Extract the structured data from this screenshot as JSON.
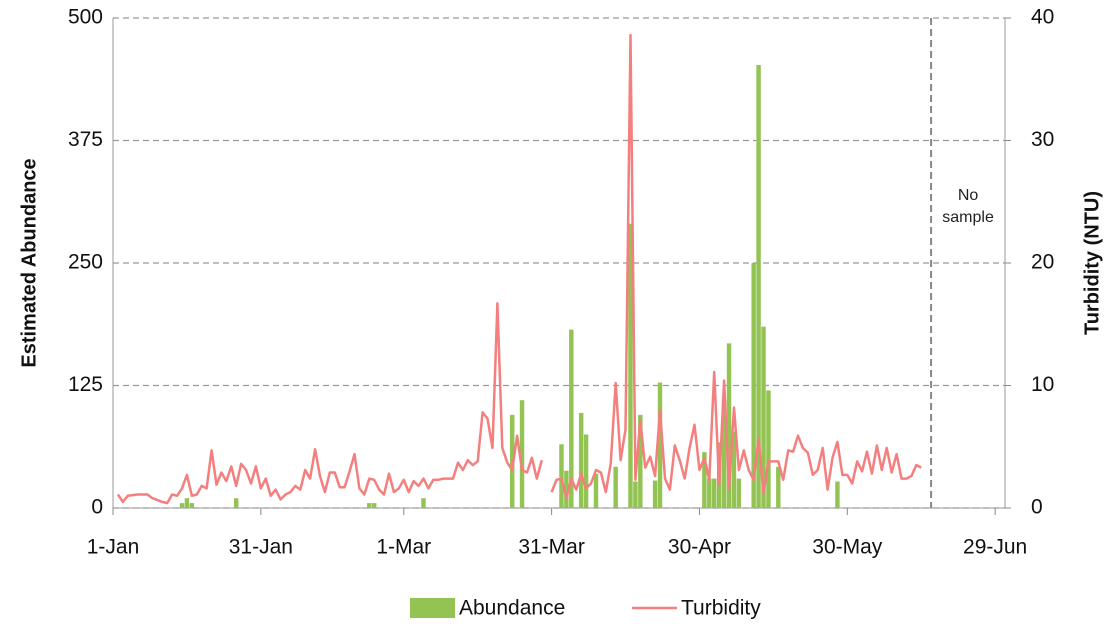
{
  "chart_data": {
    "type": "bar-line",
    "y_label": "Estimated Abundance",
    "y2_label": "Turbidity (NTU)",
    "xlim": [
      0,
      181
    ],
    "xticks": [
      {
        "value": 0,
        "label": "1-Jan"
      },
      {
        "value": 30,
        "label": "31-Jan"
      },
      {
        "value": 59,
        "label": "1-Mar"
      },
      {
        "value": 89,
        "label": "31-Mar"
      },
      {
        "value": 119,
        "label": "30-Apr"
      },
      {
        "value": 149,
        "label": "30-May"
      },
      {
        "value": 179,
        "label": "29-Jun"
      }
    ],
    "ylim": [
      0,
      500
    ],
    "yticks": [
      0,
      125,
      250,
      375,
      500
    ],
    "y2lim": [
      0,
      40
    ],
    "y2ticks": [
      0,
      10,
      20,
      30,
      40
    ],
    "grid": true,
    "legend": "bottom",
    "annotation": {
      "x": 166,
      "text": "No sample"
    },
    "series": [
      {
        "name": "Abundance",
        "type": "bar",
        "color": "#92c353",
        "x": [
          14,
          15,
          16,
          25,
          52,
          53,
          63,
          81,
          83,
          91,
          92,
          93,
          95,
          96,
          98,
          102,
          105,
          106,
          107,
          110,
          111,
          120,
          121,
          122,
          123,
          124,
          125,
          126,
          127,
          130,
          131,
          132,
          133,
          135,
          147
        ],
        "values": [
          5,
          10,
          5,
          10,
          5,
          5,
          10,
          95,
          110,
          65,
          38,
          182,
          97,
          75,
          35,
          42,
          290,
          27,
          95,
          28,
          128,
          57,
          30,
          30,
          67,
          110,
          168,
          78,
          30,
          250,
          452,
          185,
          120,
          42,
          27
        ]
      },
      {
        "name": "Turbidity",
        "type": "line",
        "axis": "y2",
        "color": "#f47f7f",
        "x": [
          1,
          2,
          3,
          5,
          7,
          8,
          10,
          11,
          12,
          13,
          14,
          15,
          16,
          17,
          18,
          19,
          20,
          21,
          22,
          23,
          24,
          25,
          26,
          27,
          28,
          29,
          30,
          31,
          32,
          33,
          34,
          35,
          36,
          37,
          38,
          39,
          40,
          41,
          42,
          43,
          44,
          45,
          46,
          47,
          48,
          49,
          50,
          51,
          52,
          53,
          54,
          55,
          56,
          57,
          58,
          59,
          60,
          61,
          62,
          63,
          64,
          65,
          66,
          67,
          68,
          69,
          70,
          71,
          72,
          73,
          74,
          75,
          76,
          77,
          78,
          79,
          80,
          81,
          82,
          83,
          84,
          85,
          86,
          87,
          88,
          89,
          90,
          91,
          92,
          93,
          94,
          95,
          96,
          97,
          98,
          99,
          100,
          101,
          102,
          103,
          104,
          105,
          106,
          107,
          108,
          109,
          110,
          111,
          112,
          113,
          114,
          115,
          116,
          117,
          118,
          119,
          120,
          121,
          122,
          123,
          124,
          125,
          126,
          127,
          128,
          129,
          130,
          131,
          132,
          133,
          134,
          135,
          136,
          137,
          138,
          139,
          140,
          141,
          142,
          143,
          144,
          145,
          146,
          147,
          148,
          149,
          150,
          151,
          152,
          153,
          154,
          155,
          156,
          157,
          158,
          159,
          160,
          161,
          162,
          163,
          164
        ],
        "values": [
          1.1,
          0.5,
          1.0,
          1.1,
          1.1,
          0.8,
          0.5,
          0.4,
          1.1,
          1.0,
          1.6,
          2.7,
          1.0,
          1.1,
          1.8,
          1.6,
          4.7,
          1.9,
          2.9,
          2.2,
          3.4,
          1.8,
          3.6,
          3.1,
          2.0,
          3.4,
          1.6,
          2.4,
          1.0,
          1.5,
          0.7,
          1.1,
          1.3,
          1.8,
          1.5,
          3.1,
          2.4,
          4.8,
          2.6,
          1.3,
          2.9,
          2.9,
          1.7,
          1.7,
          3.0,
          4.4,
          1.6,
          1.1,
          2.4,
          2.3,
          1.5,
          1.1,
          2.8,
          1.3,
          1.6,
          2.3,
          1.3,
          2.2,
          1.8,
          2.4,
          1.6,
          2.3,
          2.3,
          2.4,
          2.4,
          2.4,
          3.7,
          3.1,
          3.9,
          3.5,
          3.8,
          7.8,
          7.3,
          4.9,
          16.7,
          4.9,
          3.7,
          3.1,
          5.9,
          3.1,
          2.9,
          4.1,
          2.4,
          3.9,
          null,
          1.3,
          2.3,
          2.4,
          0.8,
          2.4,
          1.5,
          2.8,
          1.6,
          2.0,
          3.1,
          2.9,
          1.3,
          3.6,
          10.2,
          3.9,
          6.4,
          38.6,
          2.3,
          7.2,
          3.3,
          4.2,
          2.6,
          8.0,
          2.4,
          1.5,
          5.1,
          3.9,
          2.4,
          4.9,
          6.8,
          3.1,
          4.1,
          2.3,
          11.1,
          1.9,
          10.4,
          1.6,
          8.2,
          3.1,
          4.7,
          3.1,
          2.3,
          5.7,
          1.2,
          3.8,
          3.8,
          3.8,
          2.3,
          4.7,
          4.6,
          5.9,
          4.9,
          4.5,
          2.7,
          3.1,
          4.9,
          1.5,
          4.1,
          5.4,
          2.7,
          2.7,
          2.0,
          3.8,
          3.0,
          4.6,
          2.8,
          5.1,
          3.1,
          4.9,
          2.9,
          4.4,
          2.4,
          2.4,
          2.6,
          3.5,
          3.3
        ]
      }
    ]
  }
}
